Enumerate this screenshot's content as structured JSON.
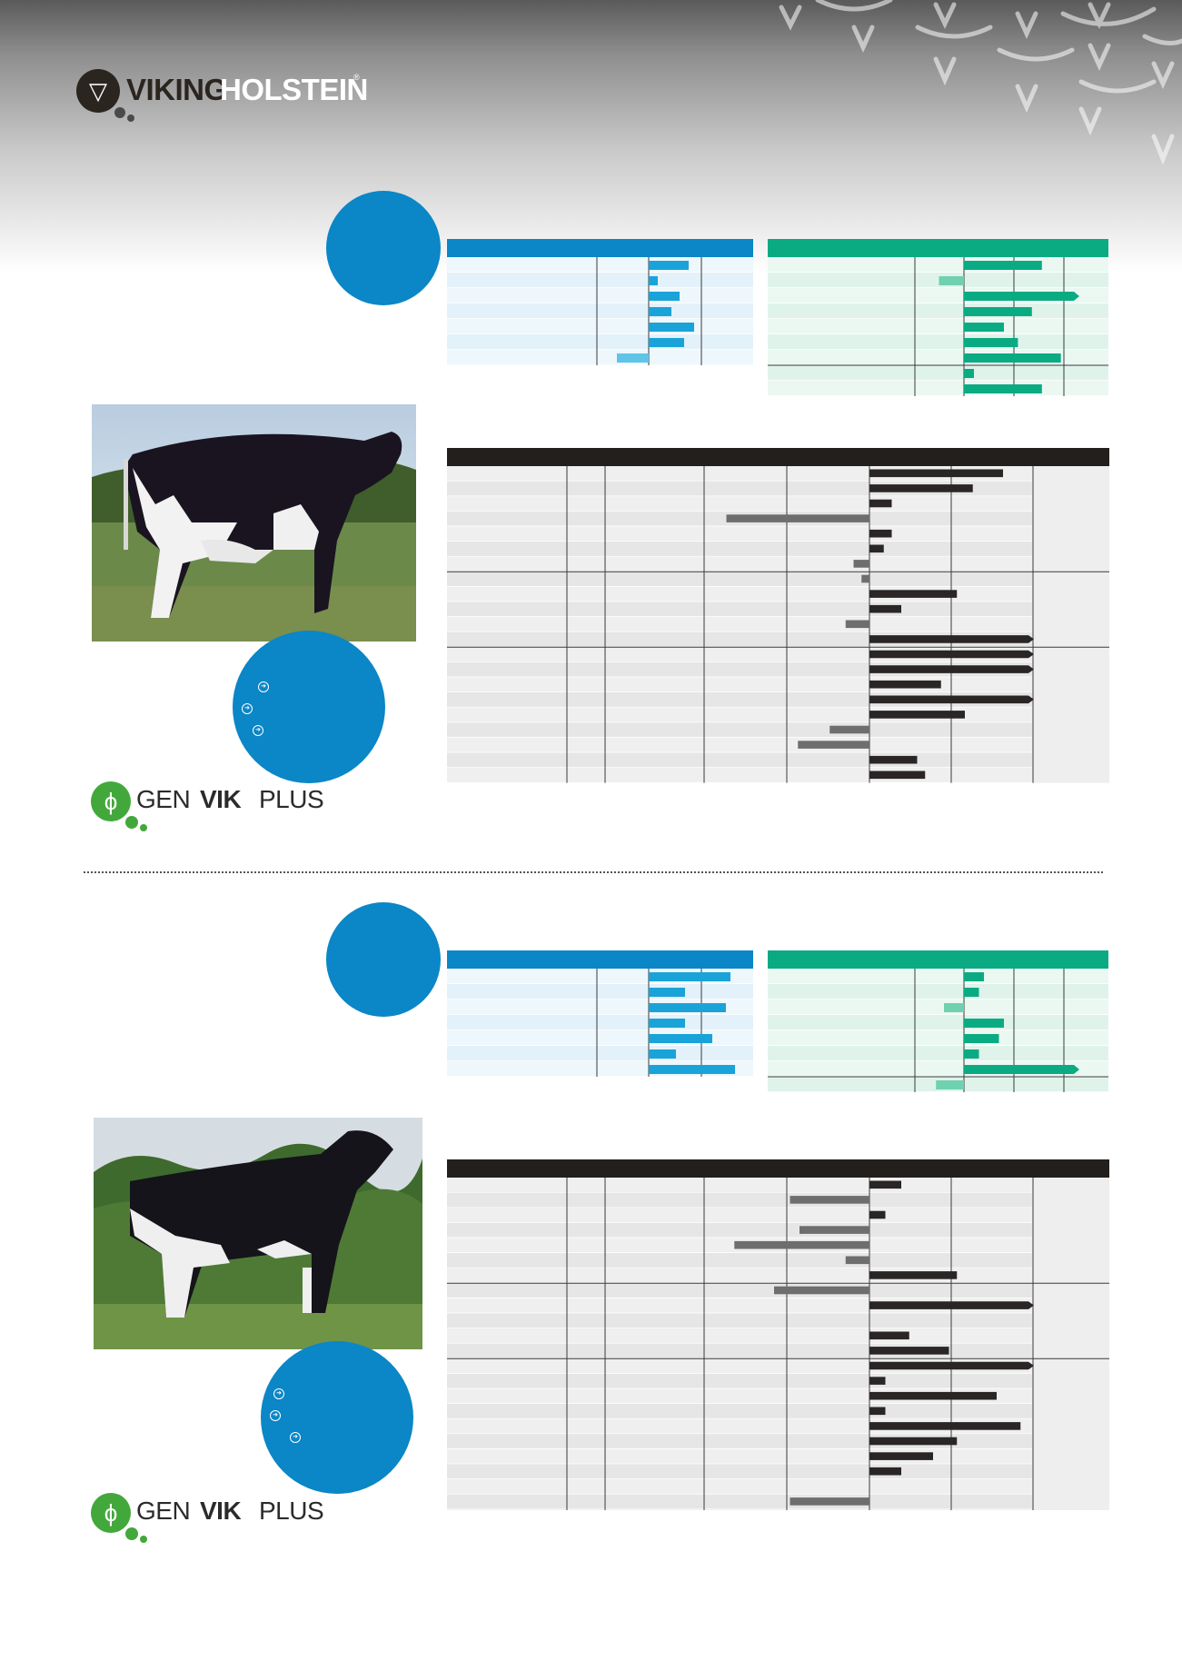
{
  "brand": {
    "logo_part1": "VIKING",
    "logo_part2": "HOLSTEIN",
    "logo_reg": "®"
  },
  "genvik": {
    "part1": "GEN",
    "part2": "VIK",
    "reg": "®",
    "part3": "PLUS"
  },
  "colors": {
    "blue": "#0b86c7",
    "green": "#0aab82",
    "dark": "#231f1c",
    "gray_bar": "#6e6e6e"
  },
  "bulls": [
    {
      "production_bars": [
        44,
        10,
        34,
        25,
        50,
        39,
        -35
      ],
      "health_bars": [
        78,
        -25,
        110,
        68,
        40,
        54,
        97,
        10,
        78
      ],
      "type_bars": [
        84,
        65,
        14,
        -90,
        14,
        9,
        -10,
        -5,
        55,
        20,
        -15,
        100,
        100,
        100,
        45,
        100,
        60,
        -25,
        -45,
        30,
        35
      ],
      "icons": [
        "cow-photo",
        "genvikplus-logo"
      ]
    },
    {
      "production_bars": [
        90,
        40,
        85,
        40,
        70,
        30,
        95
      ],
      "health_bars": [
        20,
        15,
        -20,
        40,
        35,
        15,
        115,
        -28
      ],
      "type_bars": [
        20,
        -50,
        10,
        -44,
        -85,
        -15,
        55,
        -60,
        100,
        0,
        25,
        50,
        100,
        10,
        80,
        10,
        95,
        55,
        40,
        20,
        0,
        -50,
        -45
      ],
      "icons": [
        "cow-photo",
        "genvikplus-logo"
      ]
    }
  ]
}
